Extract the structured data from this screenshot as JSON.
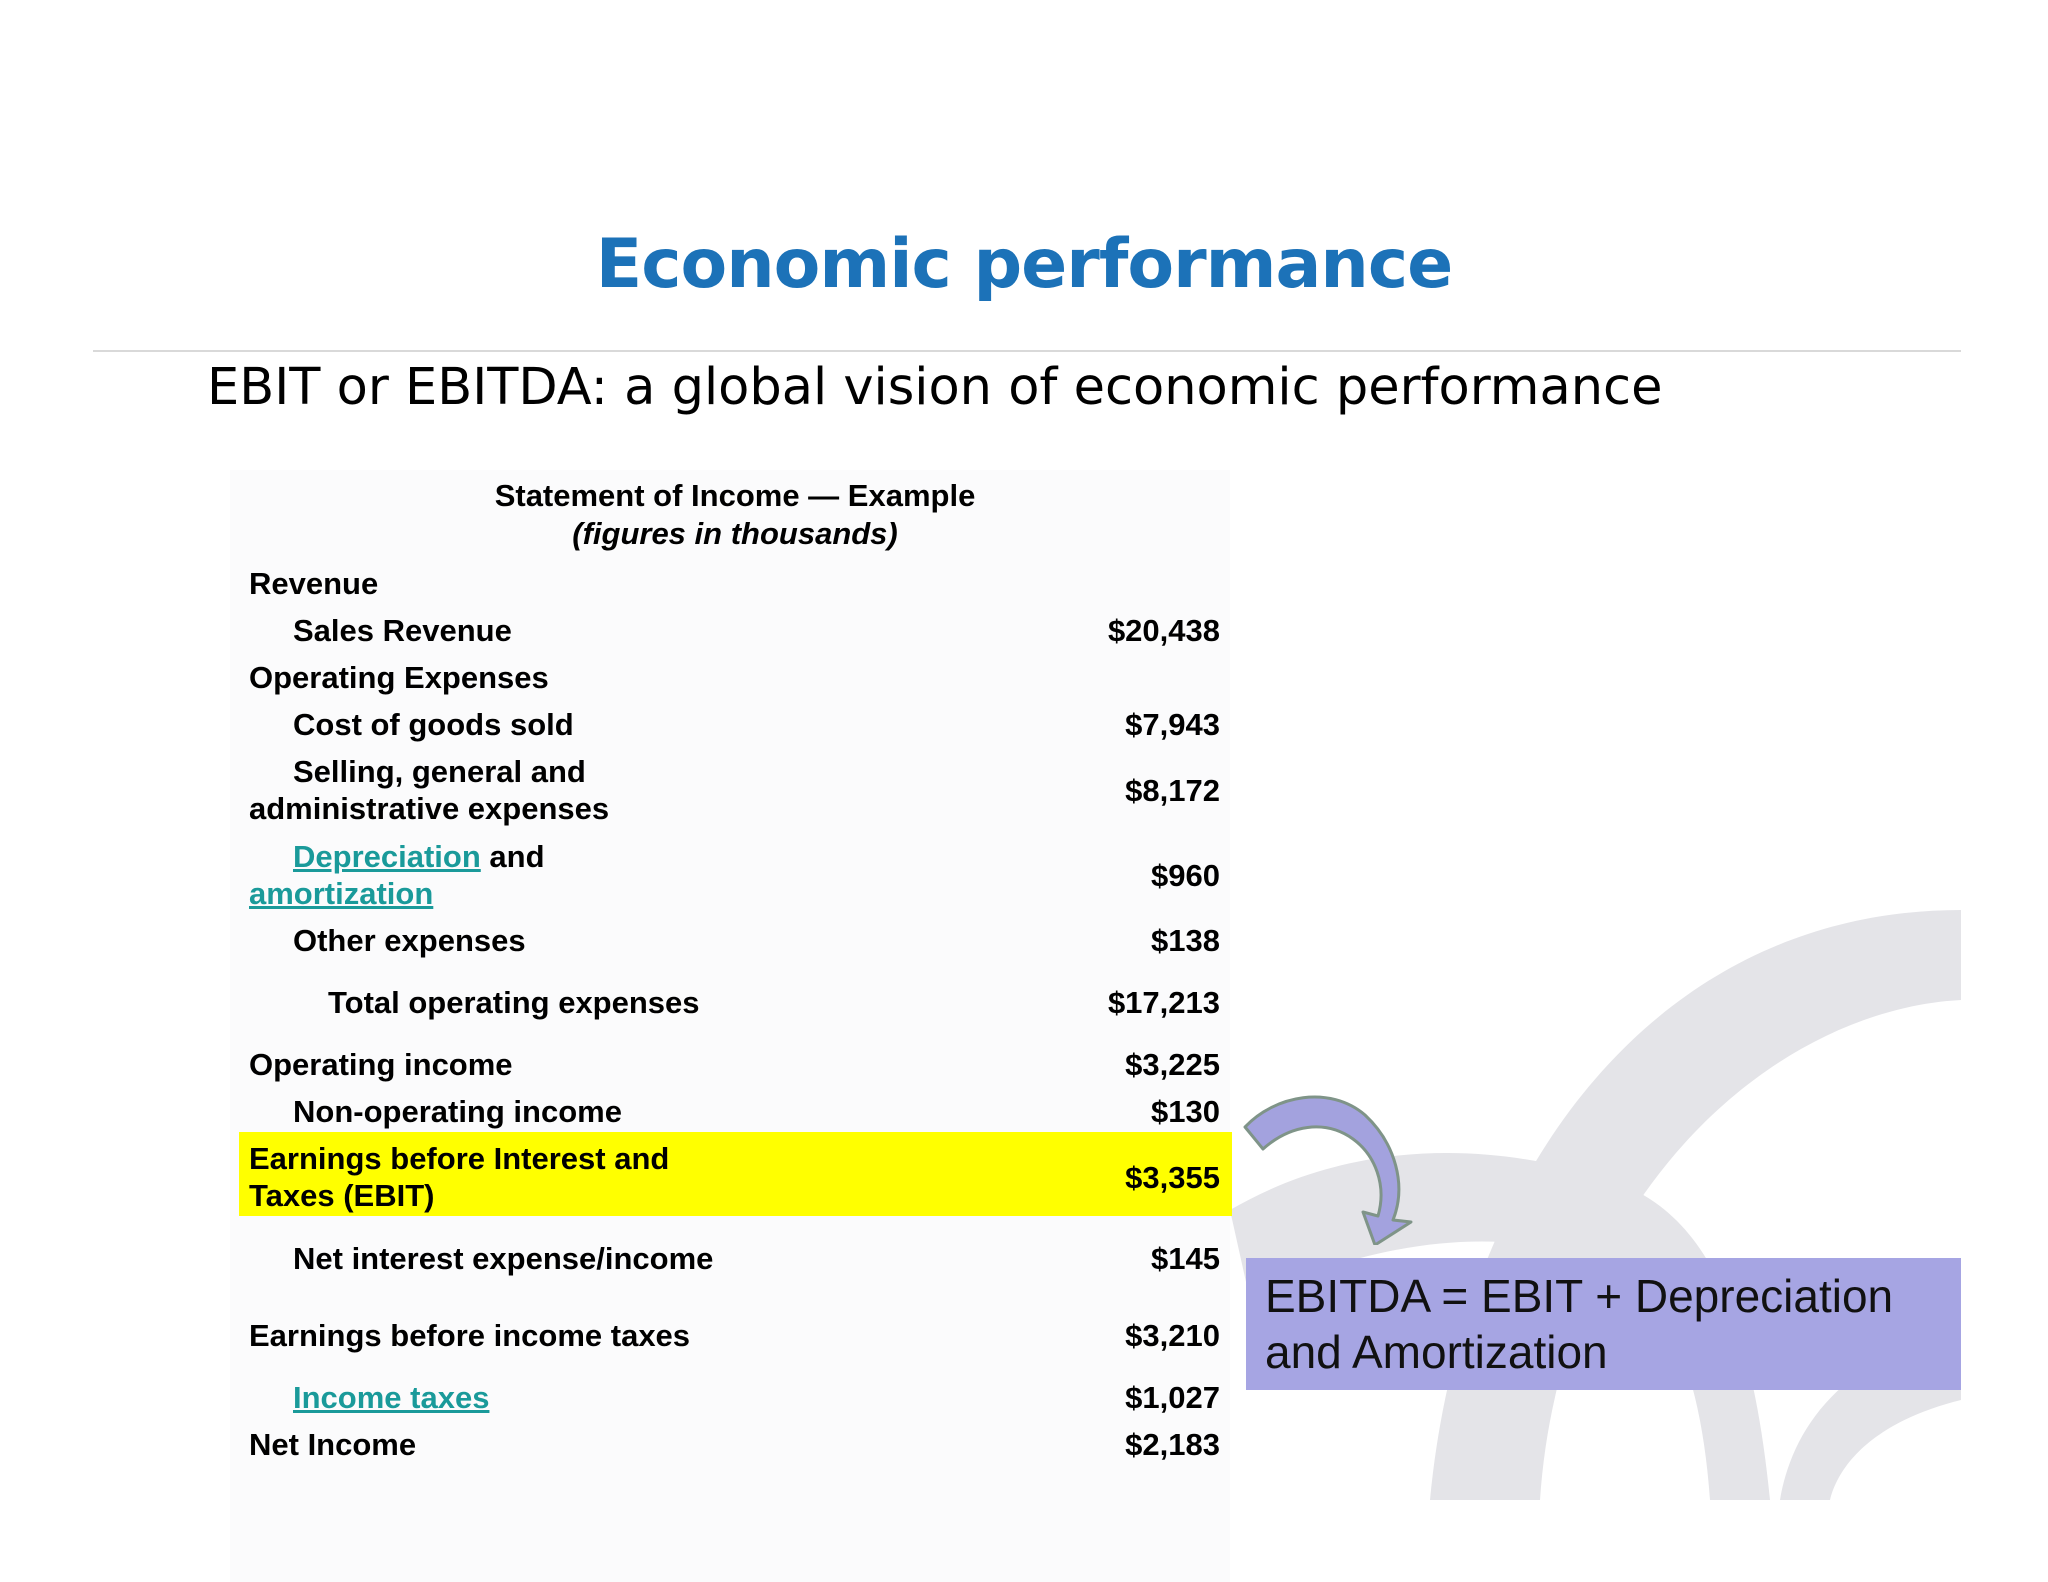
{
  "slide": {
    "title": "Economic performance",
    "subtitle": "EBIT or EBITDA: a global vision of economic performance"
  },
  "statement": {
    "title": "Statement of Income — Example",
    "subtitle": "(figures in thousands)",
    "rows": {
      "revenue": {
        "label": "Revenue"
      },
      "sales_revenue": {
        "label": "Sales Revenue",
        "value": "$20,438"
      },
      "operating_expenses": {
        "label": "Operating Expenses"
      },
      "cogs": {
        "label": "Cost of goods sold",
        "value": "$7,943"
      },
      "sga": {
        "label_line1": "Selling, general and",
        "label_line2": "administrative expenses",
        "value": "$8,172"
      },
      "dep_amort": {
        "link1": "Depreciation",
        "and": "and",
        "link2": "amortization",
        "value": "$960"
      },
      "other_expenses": {
        "label": "Other expenses",
        "value": "$138"
      },
      "total_opex": {
        "label": "Total operating expenses",
        "value": "$17,213"
      },
      "operating_income": {
        "label": "Operating income",
        "value": "$3,225"
      },
      "non_operating_income": {
        "label": "Non-operating income",
        "value": "$130"
      },
      "ebit": {
        "label_line1": "Earnings before Interest and",
        "label_line2": "Taxes (EBIT)",
        "value": "$3,355"
      },
      "net_interest": {
        "label": "Net interest expense/income",
        "value": "$145"
      },
      "ebt": {
        "label": "Earnings before income taxes",
        "value": "$3,210"
      },
      "income_taxes": {
        "label": "Income taxes",
        "value": "$1,027"
      },
      "net_income": {
        "label": "Net Income",
        "value": "$2,183"
      }
    }
  },
  "callout": {
    "line1": "EBITDA = EBIT + Depreciation",
    "line2": "and Amortization"
  },
  "colors": {
    "title": "#1c72b8",
    "link": "#1a9a9a",
    "highlight": "#ffff00",
    "callout_bg": "#a6a5e3",
    "arrow": "#a3a2de"
  }
}
